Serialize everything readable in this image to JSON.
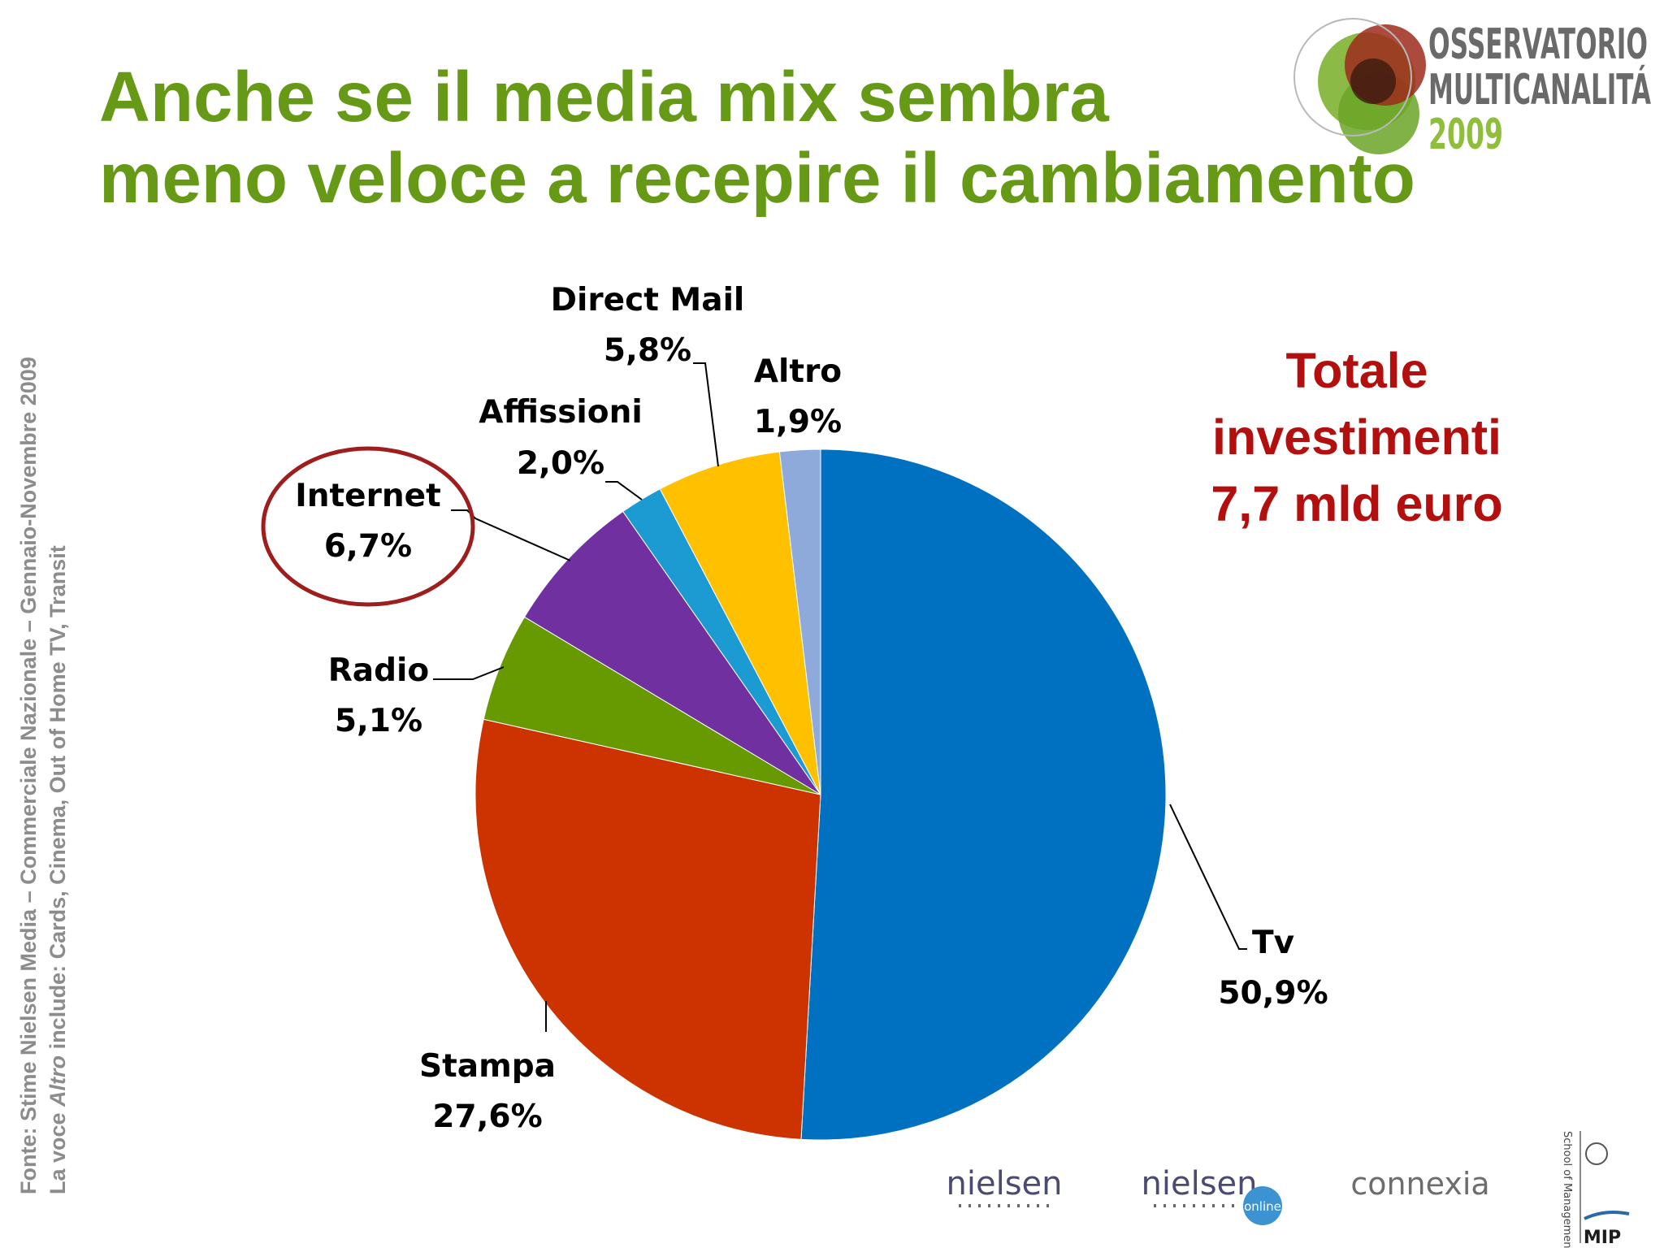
{
  "slide": {
    "title_line1": "Anche se il media mix sembra",
    "title_line2": "meno veloce a recepire il cambiamento",
    "source_line1": "Fonte: Stime Nielsen Media – Commerciale Nazionale – Gennaio-Novembre 2009",
    "source_line2_prefix": "La voce ",
    "source_line2_italic": "Altro",
    "source_line2_suffix": " include: Cards, Cinema, Out of Home TV, Transit",
    "total_line1": "Totale",
    "total_line2": "investimenti",
    "total_line3": "7,7 mld euro"
  },
  "logo": {
    "line1": "OSSERVATORIO",
    "line2": "MULTICANALITÁ",
    "year": "2009"
  },
  "footer_logos": {
    "nielsen": "nielsen",
    "nielsen_online_name": "nielsen",
    "nielsen_online_badge": "online",
    "connexia": "connexia",
    "mip": "MIP",
    "school": "School of Management"
  },
  "colors": {
    "title": "#669a16",
    "total": "#b30f0f",
    "highlight_ellipse": "#a01d1d"
  },
  "chart_data": {
    "type": "pie",
    "start": "12 o'clock",
    "direction": "clockwise",
    "highlighted": "Internet",
    "slices": [
      {
        "label": "Tv",
        "value_label": "50,9%",
        "value": 50.9,
        "color": "#0070c0"
      },
      {
        "label": "Stampa",
        "value_label": "27,6%",
        "value": 27.6,
        "color": "#cc3300"
      },
      {
        "label": "Radio",
        "value_label": "5,1%",
        "value": 5.1,
        "color": "#669a00"
      },
      {
        "label": "Internet",
        "value_label": "6,7%",
        "value": 6.7,
        "color": "#7030a0"
      },
      {
        "label": "Affissioni",
        "value_label": "2,0%",
        "value": 2.0,
        "color": "#1b9bd1"
      },
      {
        "label": "Direct Mail",
        "value_label": "5,8%",
        "value": 5.8,
        "color": "#ffc000"
      },
      {
        "label": "Altro",
        "value_label": "1,9%",
        "value": 1.9,
        "color": "#8eaadb"
      }
    ]
  }
}
